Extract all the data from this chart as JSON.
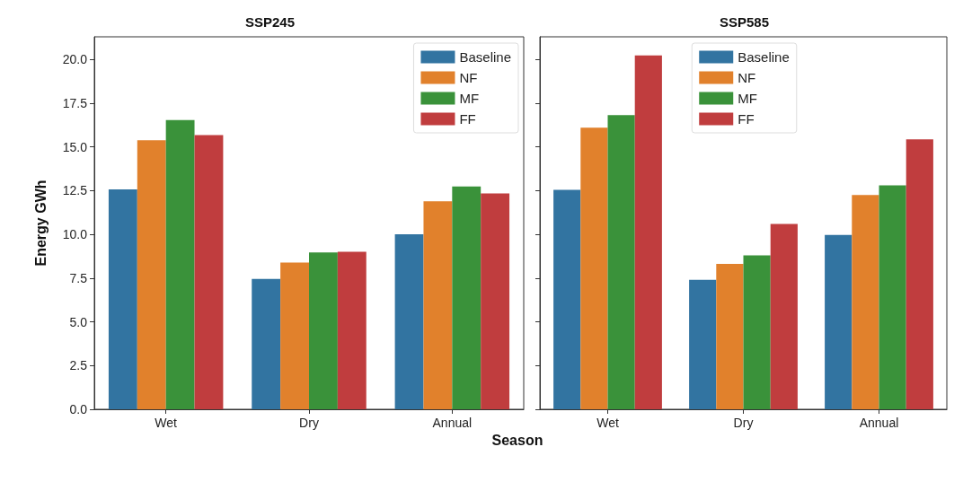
{
  "chart_data": [
    {
      "type": "bar",
      "title": "SSP245",
      "xlabel": "Season",
      "ylabel": "Energy GWh",
      "categories": [
        "Wet",
        "Dry",
        "Annual"
      ],
      "series": [
        {
          "name": "Baseline",
          "color": "#3274a1",
          "values": [
            12.58,
            7.46,
            10.01
          ]
        },
        {
          "name": "NF",
          "color": "#e1812c",
          "values": [
            15.39,
            8.39,
            11.89
          ]
        },
        {
          "name": "MF",
          "color": "#3a923a",
          "values": [
            16.54,
            8.97,
            12.74
          ]
        },
        {
          "name": "FF",
          "color": "#c03d3e",
          "values": [
            15.68,
            9.01,
            12.34
          ]
        }
      ],
      "ylim": [
        0,
        21.3
      ],
      "yticks": [
        {
          "value": 0,
          "label": "0.0"
        },
        {
          "value": 2.5,
          "label": "2.5"
        },
        {
          "value": 5,
          "label": "5.0"
        },
        {
          "value": 7.5,
          "label": "7.5"
        },
        {
          "value": 10,
          "label": "10.0"
        },
        {
          "value": 12.5,
          "label": "12.5"
        },
        {
          "value": 15,
          "label": "15.0"
        },
        {
          "value": 17.5,
          "label": "17.5"
        },
        {
          "value": 20,
          "label": "20.0"
        }
      ],
      "legend": "top right"
    },
    {
      "type": "bar",
      "title": "SSP585",
      "categories": [
        "Wet",
        "Dry",
        "Annual"
      ],
      "series": [
        {
          "name": "Baseline",
          "color": "#3274a1",
          "values": [
            12.55,
            7.4,
            9.97
          ]
        },
        {
          "name": "NF",
          "color": "#e1812c",
          "values": [
            16.1,
            8.32,
            12.25
          ]
        },
        {
          "name": "MF",
          "color": "#3a923a",
          "values": [
            16.82,
            8.8,
            12.81
          ]
        },
        {
          "name": "FF",
          "color": "#c03d3e",
          "values": [
            20.24,
            10.6,
            15.44
          ]
        }
      ],
      "ylim": [
        0,
        21.3
      ],
      "yticks": [
        {
          "value": 0,
          "label": null
        },
        {
          "value": 2.5,
          "label": null
        },
        {
          "value": 5,
          "label": null
        },
        {
          "value": 7.5,
          "label": null
        },
        {
          "value": 10,
          "label": null
        },
        {
          "value": 12.5,
          "label": null
        },
        {
          "value": 15,
          "label": null
        },
        {
          "value": 17.5,
          "label": null
        },
        {
          "value": 20,
          "label": null
        }
      ],
      "legend": "top",
      "tick_labels": "x"
    }
  ]
}
